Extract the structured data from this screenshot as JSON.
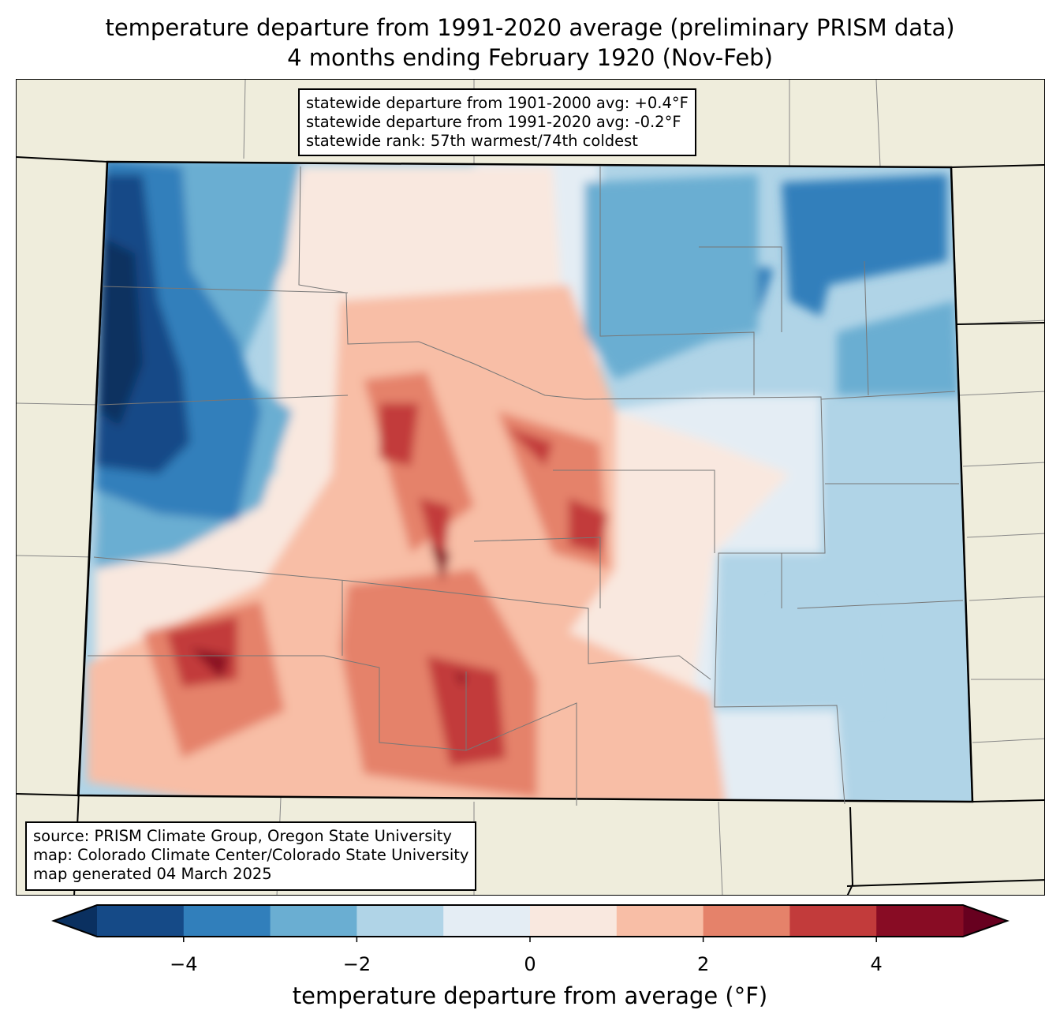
{
  "title_line1": "temperature departure from 1991-2020 average (preliminary PRISM data)",
  "title_line2": "4 months ending February 1920 (Nov-Feb)",
  "stats_box": {
    "line1": "statewide departure from 1901-2000 avg: +0.4°F",
    "line2": "statewide departure from 1991-2020 avg: -0.2°F",
    "line3": "statewide rank: 57th warmest/74th coldest"
  },
  "source_box": {
    "line1": "source: PRISM Climate Group, Oregon State University",
    "line2": "map: Colorado Climate Center/Colorado State University",
    "line3": "map generated 04 March 2025"
  },
  "colorbar": {
    "label": "temperature departure from average (°F)",
    "ticks": [
      "−4",
      "−2",
      "0",
      "2",
      "4"
    ],
    "tick_values": [
      -4,
      -2,
      0,
      2,
      4
    ],
    "range": [
      -5,
      5
    ],
    "bounds": [
      -5,
      -4,
      -3,
      -2,
      -1,
      0,
      1,
      2,
      3,
      4,
      5
    ],
    "colors": [
      "#154a87",
      "#317fbb",
      "#6aaed2",
      "#b0d4e7",
      "#e4edf4",
      "#f9e8df",
      "#f8bea6",
      "#e5826a",
      "#c23b3b",
      "#880c24"
    ],
    "under_color": "#0a3060",
    "over_color": "#67001f"
  },
  "colors": {
    "land": "#efeddc"
  }
}
